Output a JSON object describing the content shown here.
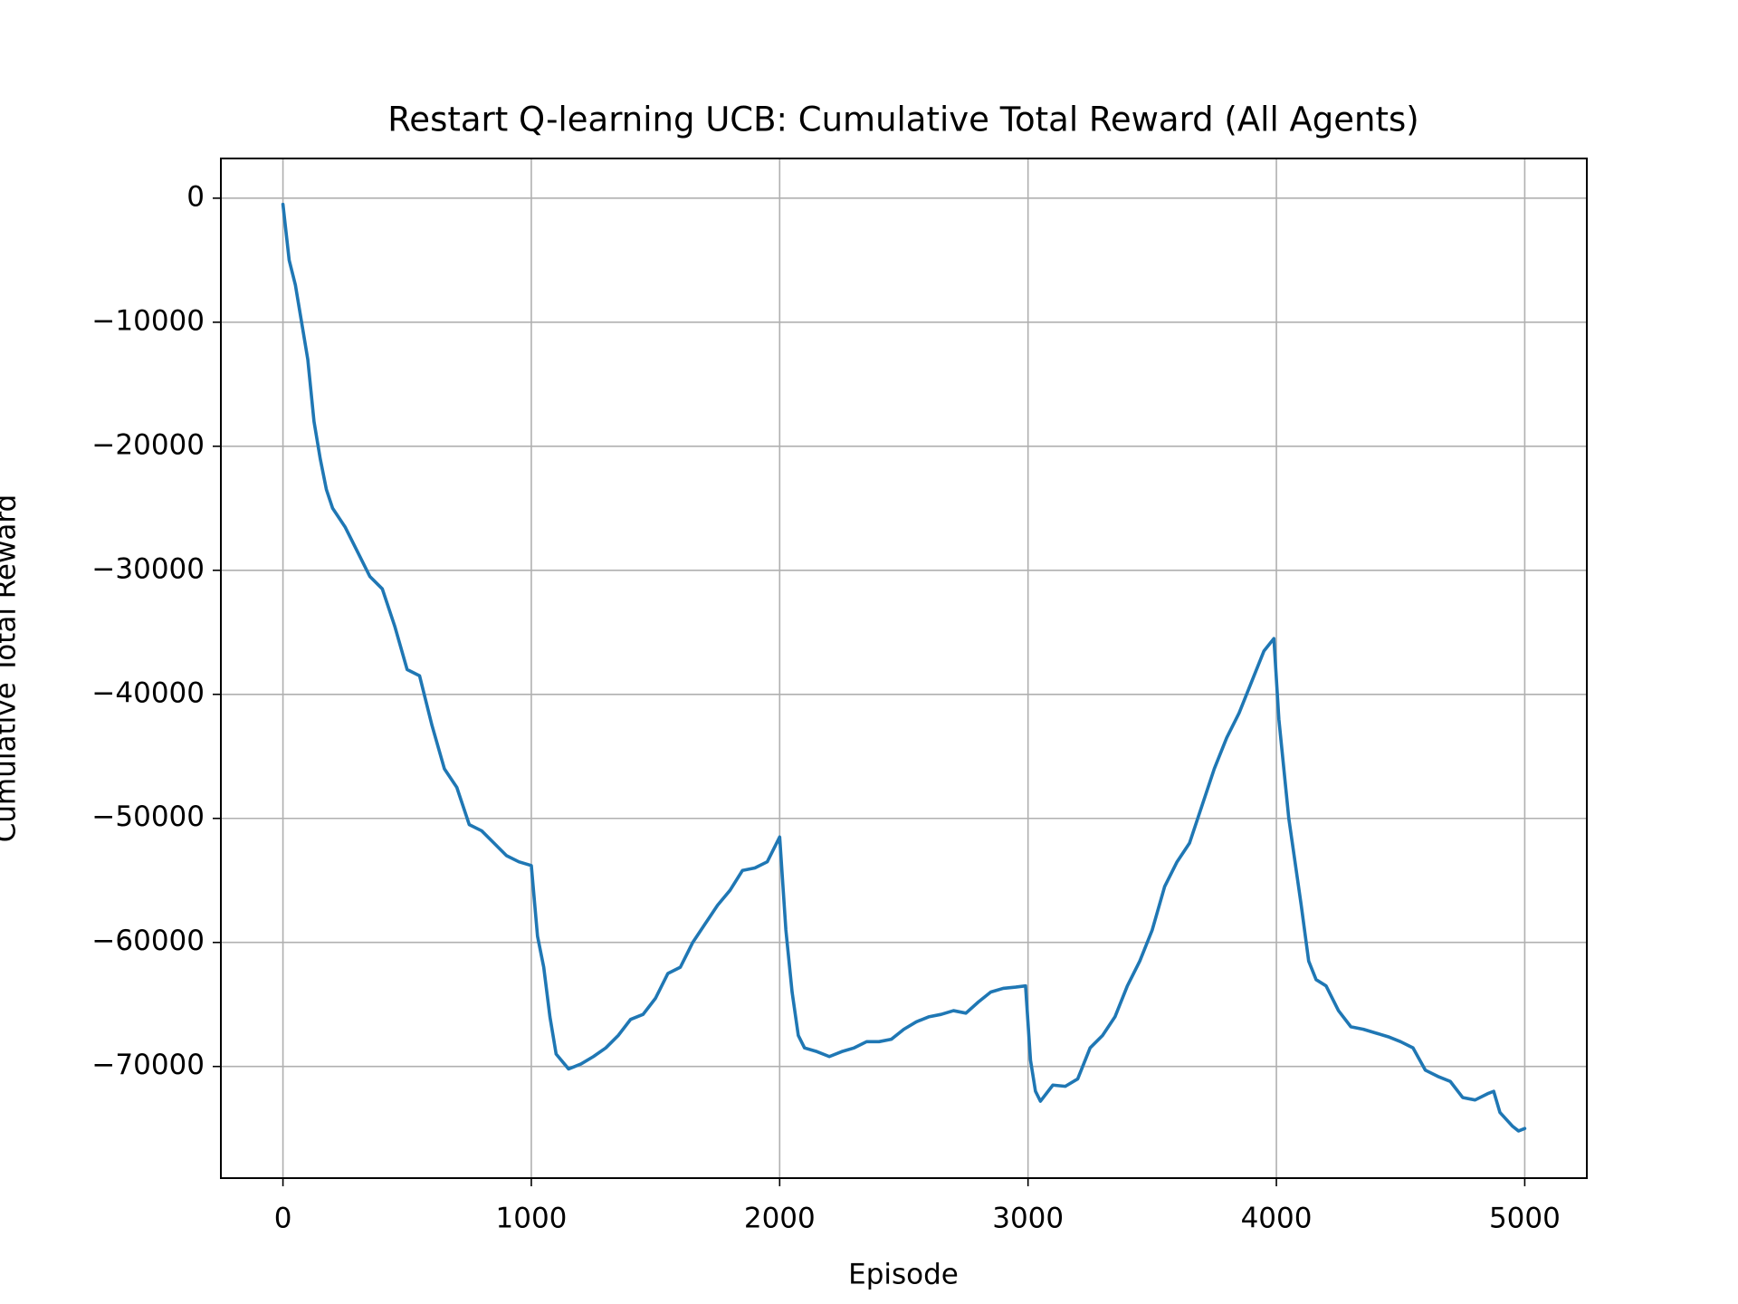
{
  "chart_data": {
    "type": "line",
    "title": "Restart Q-learning UCB: Cumulative Total Reward (All Agents)",
    "x_label": "Episode",
    "y_label": "Cumulative Total Reward",
    "color": "#1f77b4",
    "grid": true,
    "xlim": [
      -250,
      5250
    ],
    "ylim": [
      -79000,
      3200
    ],
    "xticks": [
      0,
      1000,
      2000,
      3000,
      4000,
      5000
    ],
    "yticks": [
      0,
      {
        "value": -10000,
        "label": "−10000"
      },
      {
        "value": -20000,
        "label": "−20000"
      },
      {
        "value": -30000,
        "label": "−30000"
      },
      {
        "value": -40000,
        "label": "−40000"
      },
      {
        "value": -50000,
        "label": "−50000"
      },
      {
        "value": -60000,
        "label": "−60000"
      },
      {
        "value": -70000,
        "label": "−70000"
      }
    ],
    "x": [
      0,
      25,
      50,
      75,
      100,
      125,
      150,
      175,
      200,
      250,
      300,
      350,
      400,
      450,
      500,
      550,
      600,
      650,
      700,
      750,
      800,
      850,
      900,
      950,
      1000,
      1025,
      1050,
      1075,
      1100,
      1150,
      1200,
      1250,
      1300,
      1350,
      1400,
      1450,
      1500,
      1550,
      1600,
      1650,
      1700,
      1750,
      1800,
      1850,
      1900,
      1950,
      2000,
      2025,
      2050,
      2075,
      2100,
      2150,
      2200,
      2250,
      2300,
      2350,
      2400,
      2450,
      2500,
      2550,
      2600,
      2650,
      2700,
      2750,
      2800,
      2850,
      2900,
      2950,
      2990,
      3010,
      3030,
      3050,
      3100,
      3150,
      3200,
      3250,
      3300,
      3350,
      3400,
      3450,
      3500,
      3550,
      3600,
      3650,
      3700,
      3750,
      3800,
      3850,
      3900,
      3950,
      3990,
      4010,
      4050,
      4100,
      4130,
      4160,
      4200,
      4250,
      4300,
      4350,
      4400,
      4450,
      4500,
      4550,
      4600,
      4650,
      4700,
      4750,
      4800,
      4850,
      4875,
      4900,
      4950,
      4975,
      5000
    ],
    "values": [
      -500,
      -5000,
      -7000,
      -10000,
      -13000,
      -18000,
      -21000,
      -23500,
      -25000,
      -26500,
      -28500,
      -30500,
      -31500,
      -34500,
      -38000,
      -38500,
      -42500,
      -46000,
      -47500,
      -50500,
      -51000,
      -52000,
      -53000,
      -53500,
      -53800,
      -59500,
      -62000,
      -66000,
      -69000,
      -70200,
      -69800,
      -69200,
      -68500,
      -67500,
      -66200,
      -65800,
      -64500,
      -62500,
      -62000,
      -60000,
      -58500,
      -57000,
      -55800,
      -54200,
      -54000,
      -53500,
      -51500,
      -59000,
      -64000,
      -67500,
      -68500,
      -68800,
      -69200,
      -68800,
      -68500,
      -68000,
      -68000,
      -67800,
      -67000,
      -66400,
      -66000,
      -65800,
      -65500,
      -65700,
      -64800,
      -64000,
      -63700,
      -63600,
      -63500,
      -69500,
      -72000,
      -72800,
      -71500,
      -71600,
      -71000,
      -68500,
      -67500,
      -66000,
      -63500,
      -61500,
      -59000,
      -55500,
      -53500,
      -52000,
      -49000,
      -46000,
      -43500,
      -41500,
      -39000,
      -36500,
      -35500,
      -42000,
      -50000,
      -57000,
      -61500,
      -63000,
      -63500,
      -65500,
      -66800,
      -67000,
      -67300,
      -67600,
      -68000,
      -68500,
      -70300,
      -70800,
      -71200,
      -72500,
      -72700,
      -72200,
      -72000,
      -73700,
      -74800,
      -75200,
      -75000
    ]
  }
}
